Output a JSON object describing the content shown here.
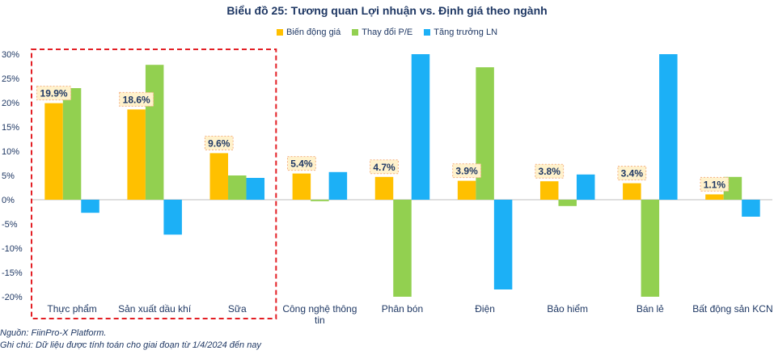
{
  "chart_data": {
    "type": "bar",
    "title": "Biểu đồ 25: Tương quan Lợi nhuận vs. Định giá theo ngành",
    "categories": [
      "Thực phẩm",
      "Sản xuất dầu khí",
      "Sữa",
      "Công nghệ thông tin",
      "Phân bón",
      "Điện",
      "Bảo hiểm",
      "Bán lẻ",
      "Bất động sản KCN"
    ],
    "category_lines": [
      [
        "Thực phẩm"
      ],
      [
        "Sản xuất dầu khí"
      ],
      [
        "Sữa"
      ],
      [
        "Công nghệ thông",
        "tin"
      ],
      [
        "Phân bón"
      ],
      [
        "Điện"
      ],
      [
        "Bảo hiểm"
      ],
      [
        "Bán lẻ"
      ],
      [
        "Bất động sản KCN"
      ]
    ],
    "series": [
      {
        "name": "Biến động giá",
        "color": "#FFC000",
        "values": [
          19.9,
          18.6,
          9.6,
          5.4,
          4.7,
          3.9,
          3.8,
          3.4,
          1.1
        ]
      },
      {
        "name": "Thay đổi P/E",
        "color": "#92D050",
        "values": [
          23.0,
          27.8,
          5.0,
          -0.3,
          -20.0,
          27.3,
          -1.3,
          -20.0,
          4.7
        ]
      },
      {
        "name": "Tăng trưởng LN",
        "color": "#1CB0F6",
        "values": [
          -2.7,
          -7.2,
          4.5,
          5.7,
          30.0,
          -18.5,
          5.2,
          30.0,
          -3.5
        ]
      }
    ],
    "data_labels": [
      "19.9%",
      "18.6%",
      "9.6%",
      "5.4%",
      "4.7%",
      "3.9%",
      "3.8%",
      "3.4%",
      "1.1%"
    ],
    "ylim": [
      -20,
      30
    ],
    "yticks": [
      30,
      25,
      20,
      15,
      10,
      5,
      0,
      -5,
      -10,
      -15,
      -20
    ],
    "ytick_labels": [
      "30%",
      "25%",
      "20%",
      "15%",
      "10%",
      "5%",
      "0%",
      "-5%",
      "-10%",
      "-15%",
      "-20%"
    ],
    "highlight_categories": [
      "Thực phẩm",
      "Sản xuất dầu khí",
      "Sữa"
    ],
    "grid": false
  },
  "footer": {
    "source": "Nguồn: FiinPro-X Platform.",
    "note": "Ghi chú: Dữ liệu được tính toán cho giai đoạn từ 1/4/2024 đến nay"
  }
}
